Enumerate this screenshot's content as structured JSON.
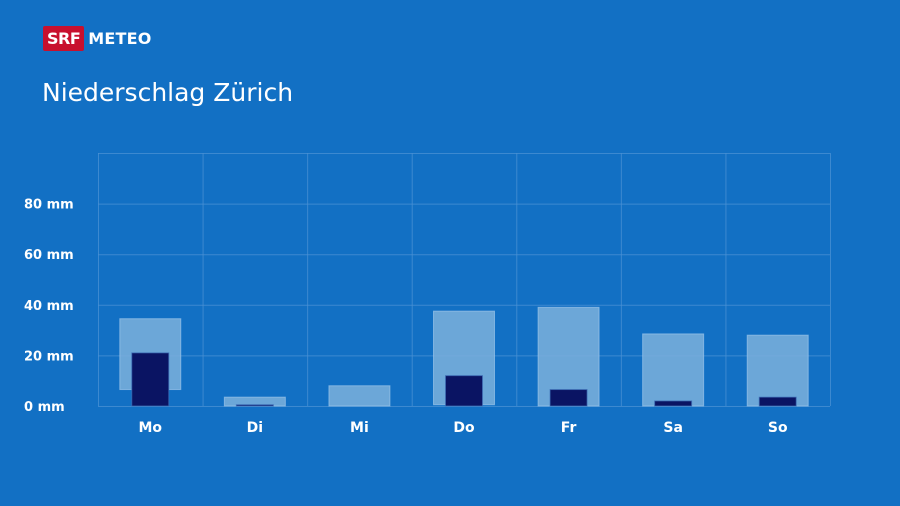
{
  "brand": {
    "srf": "SRF",
    "meteo": "METEO"
  },
  "chart_data": {
    "type": "bar",
    "title": "Niederschlag Zürich",
    "categories": [
      "Mo",
      "Di",
      "Mi",
      "Do",
      "Fr",
      "Sa",
      "So"
    ],
    "y_ticks": [
      0,
      20,
      40,
      60,
      80
    ],
    "y_tick_labels": [
      "0 mm",
      "20 mm",
      "40 mm",
      "60 mm",
      "80 mm"
    ],
    "ylim": [
      0,
      100
    ],
    "grid": true,
    "range_bars": [
      {
        "low": 6.5,
        "high": 34.5
      },
      {
        "low": 0,
        "high": 3.5
      },
      {
        "low": 0,
        "high": 8
      },
      {
        "low": 0.5,
        "high": 37.5
      },
      {
        "low": 0,
        "high": 39
      },
      {
        "low": 0,
        "high": 28.5
      },
      {
        "low": 0,
        "high": 28
      }
    ],
    "values": [
      21,
      0.5,
      0,
      12,
      6.5,
      2,
      3.5
    ],
    "colors": {
      "background": "#1270c4",
      "range": "#7cb0dc",
      "value": "#0a1463",
      "grid": "#4b92d4"
    }
  }
}
